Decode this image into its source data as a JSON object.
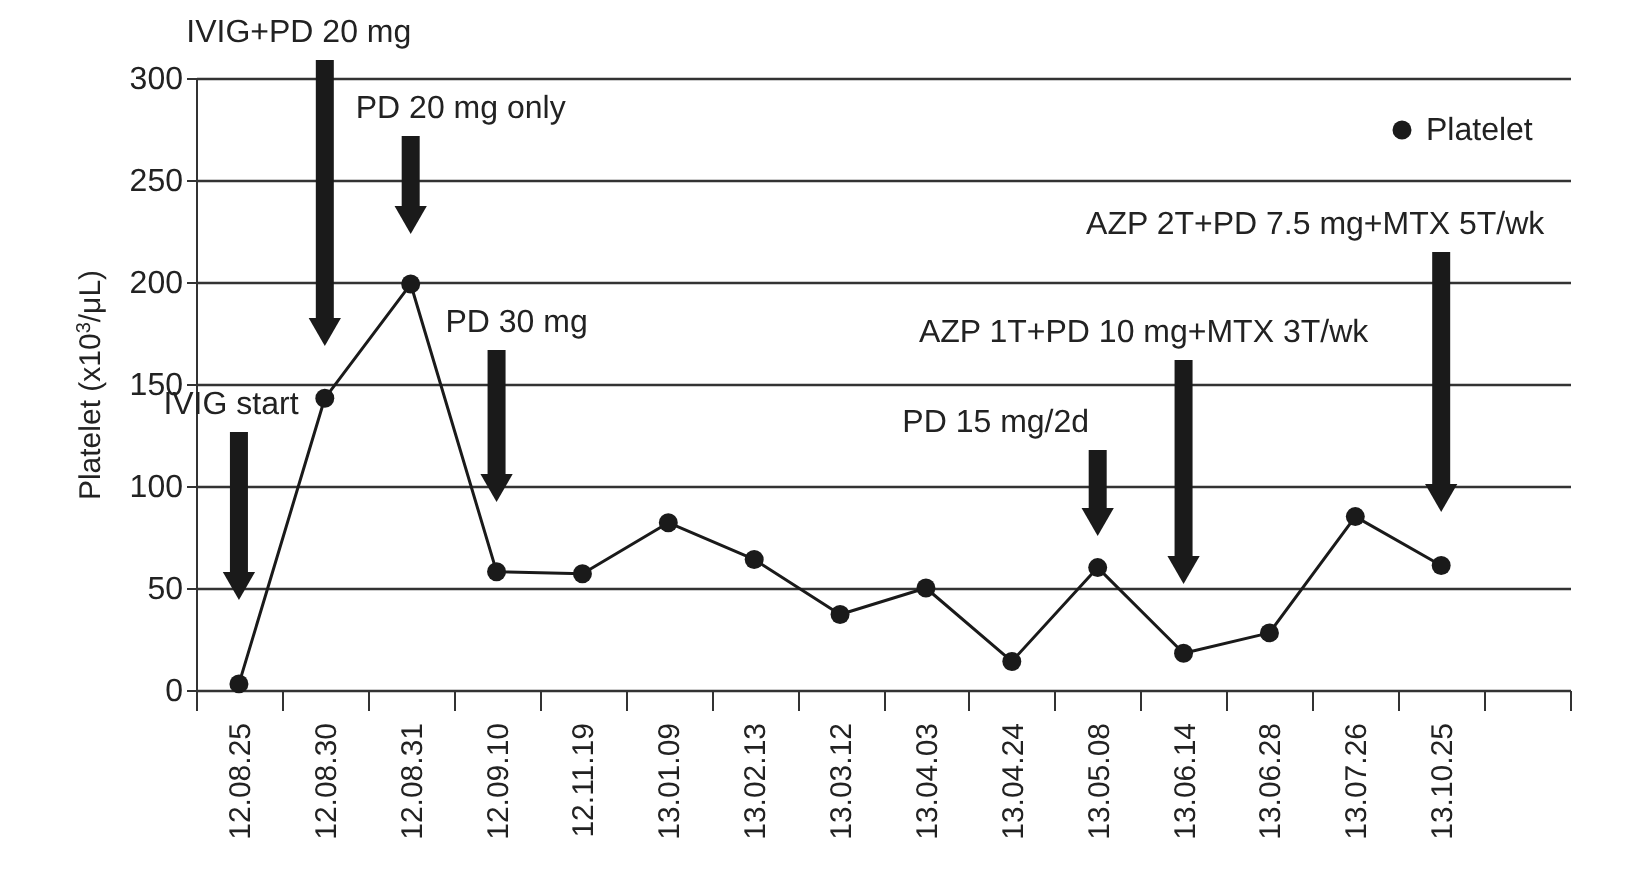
{
  "chart_data": {
    "type": "line",
    "ylabel": "Platelet (x10$^{3}$/μL)",
    "categories": [
      "12.08.25",
      "12.08.30",
      "12.08.31",
      "12.09.10",
      "12.11.19",
      "13.01.09",
      "13.02.13",
      "13.03.12",
      "13.04.03",
      "13.04.24",
      "13.05.08",
      "13.06.14",
      "13.06.28",
      "13.07.26",
      "13.10.25",
      null
    ],
    "series": [
      {
        "name": "Platelet",
        "color": "#1a1a1a",
        "values": [
          3,
          143,
          199,
          58,
          57,
          82,
          64,
          37,
          50,
          14,
          60,
          18,
          28,
          85,
          61,
          null
        ]
      }
    ],
    "ylim": [
      0,
      300
    ],
    "yticks": [
      0,
      50,
      100,
      150,
      200,
      250,
      300
    ],
    "grid": "y",
    "legend": "top right",
    "marker": "circle",
    "line_style": "solid",
    "annotations": [
      "IVIG start",
      "IVIG+PD 20 mg",
      "PD 20 mg only",
      "PD 30 mg",
      "PD 15 mg/2d",
      "AZP 1T+PD 10 mg+MTX 3T/wk",
      "AZP 2T+PD 7.5 mg+MTX 5T/wk"
    ]
  }
}
